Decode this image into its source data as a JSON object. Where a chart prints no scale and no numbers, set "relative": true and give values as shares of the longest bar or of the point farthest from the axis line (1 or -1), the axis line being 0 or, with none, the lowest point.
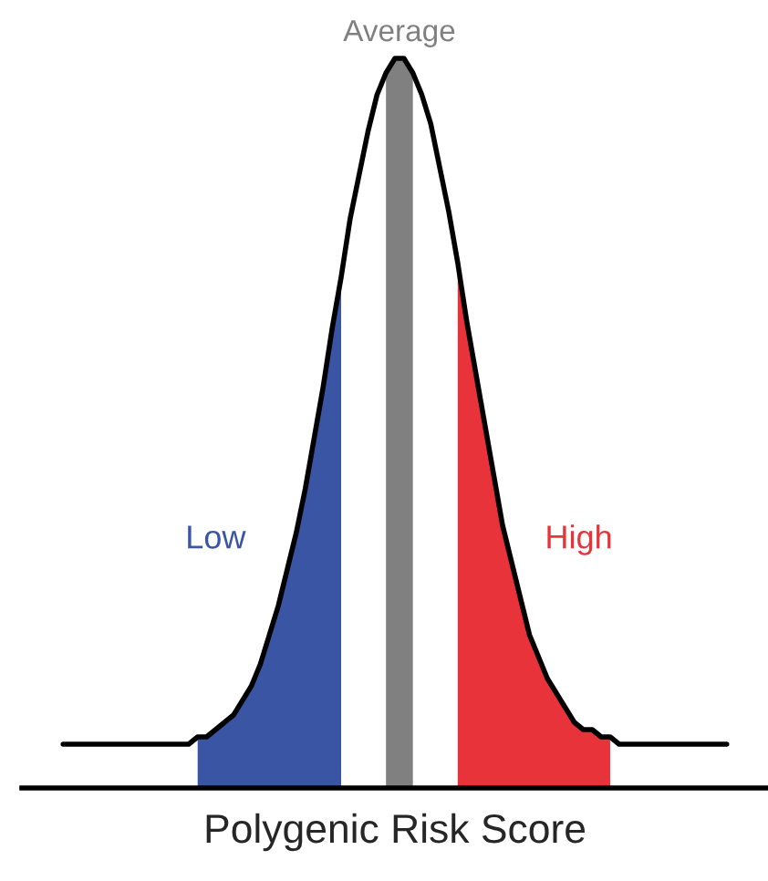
{
  "chart_data": {
    "type": "area",
    "relative": true,
    "xlabel": "Polygenic Risk Score",
    "categories": [
      null,
      null,
      null,
      null,
      null,
      null,
      null,
      null,
      null,
      null,
      null,
      null,
      null,
      null,
      null,
      null,
      null,
      null,
      null,
      null,
      null,
      null,
      null,
      null,
      null,
      null,
      null,
      null,
      null,
      null,
      null,
      null,
      null,
      null,
      null,
      null,
      null,
      null,
      null,
      null,
      null,
      null,
      null,
      null,
      null,
      null,
      null,
      null,
      null,
      null,
      null,
      null,
      null,
      null,
      null,
      null,
      null,
      null,
      null,
      null,
      null,
      null,
      null,
      null,
      null,
      null,
      null,
      null,
      null,
      null,
      null,
      null,
      null,
      null,
      null
    ],
    "series": [
      {
        "name": "Low",
        "color": "#3a55a4",
        "values": [
          null,
          null,
          null,
          null,
          null,
          null,
          null,
          null,
          null,
          null,
          null,
          null,
          null,
          null,
          null,
          0.07,
          0.07,
          0.08,
          0.09,
          0.1,
          0.12,
          0.14,
          0.17,
          0.21,
          0.25,
          0.3,
          0.35,
          0.41,
          0.48,
          0.55,
          0.63,
          0.7,
          null,
          null,
          null,
          null,
          null,
          null,
          null,
          null,
          null,
          null,
          null,
          null,
          null,
          null,
          null,
          null,
          null,
          null,
          null,
          null,
          null,
          null,
          null,
          null,
          null,
          null,
          null,
          null,
          null,
          null,
          null,
          null,
          null,
          null,
          null,
          null,
          null,
          null,
          null,
          null,
          null,
          null,
          null
        ]
      },
      {
        "name": "Average",
        "color": "#808080",
        "values": [
          null,
          null,
          null,
          null,
          null,
          null,
          null,
          null,
          null,
          null,
          null,
          null,
          null,
          null,
          null,
          null,
          null,
          null,
          null,
          null,
          null,
          null,
          null,
          null,
          null,
          null,
          null,
          null,
          null,
          null,
          null,
          null,
          null,
          null,
          null,
          null,
          0.98,
          1.0,
          1.0,
          0.98,
          null,
          null,
          null,
          null,
          null,
          null,
          null,
          null,
          null,
          null,
          null,
          null,
          null,
          null,
          null,
          null,
          null,
          null,
          null,
          null,
          null,
          null,
          null,
          null,
          null,
          null,
          null,
          null,
          null,
          null,
          null,
          null,
          null,
          null,
          null
        ]
      },
      {
        "name": "High",
        "color": "#e8333a",
        "values": [
          null,
          null,
          null,
          null,
          null,
          null,
          null,
          null,
          null,
          null,
          null,
          null,
          null,
          null,
          null,
          null,
          null,
          null,
          null,
          null,
          null,
          null,
          null,
          null,
          null,
          null,
          null,
          null,
          null,
          null,
          null,
          null,
          null,
          null,
          null,
          null,
          null,
          null,
          null,
          null,
          null,
          null,
          null,
          null,
          0.72,
          0.64,
          0.57,
          0.5,
          0.43,
          0.36,
          0.31,
          0.26,
          0.21,
          0.18,
          0.15,
          0.13,
          0.11,
          0.09,
          0.08,
          0.08,
          0.07,
          0.07,
          null,
          null,
          null,
          null,
          null,
          null,
          null,
          null,
          null,
          null,
          null,
          null,
          null
        ]
      },
      {
        "type": "line",
        "color": "#000000",
        "values": [
          0.06,
          0.06,
          0.06,
          0.06,
          0.06,
          0.06,
          0.06,
          0.06,
          0.06,
          0.06,
          0.06,
          0.06,
          0.06,
          0.06,
          0.06,
          0.07,
          0.07,
          0.08,
          0.09,
          0.1,
          0.12,
          0.14,
          0.17,
          0.21,
          0.25,
          0.3,
          0.35,
          0.41,
          0.48,
          0.55,
          0.63,
          0.7,
          0.78,
          0.84,
          0.9,
          0.95,
          0.98,
          1.0,
          1.0,
          0.98,
          0.95,
          0.91,
          0.85,
          0.79,
          0.72,
          0.64,
          0.57,
          0.5,
          0.43,
          0.36,
          0.31,
          0.26,
          0.21,
          0.18,
          0.15,
          0.13,
          0.11,
          0.09,
          0.08,
          0.08,
          0.07,
          0.07,
          0.06,
          0.06,
          0.06,
          0.06,
          0.06,
          0.06,
          0.06,
          0.06,
          0.06,
          0.06,
          0.06,
          0.06,
          0.06
        ]
      }
    ]
  }
}
